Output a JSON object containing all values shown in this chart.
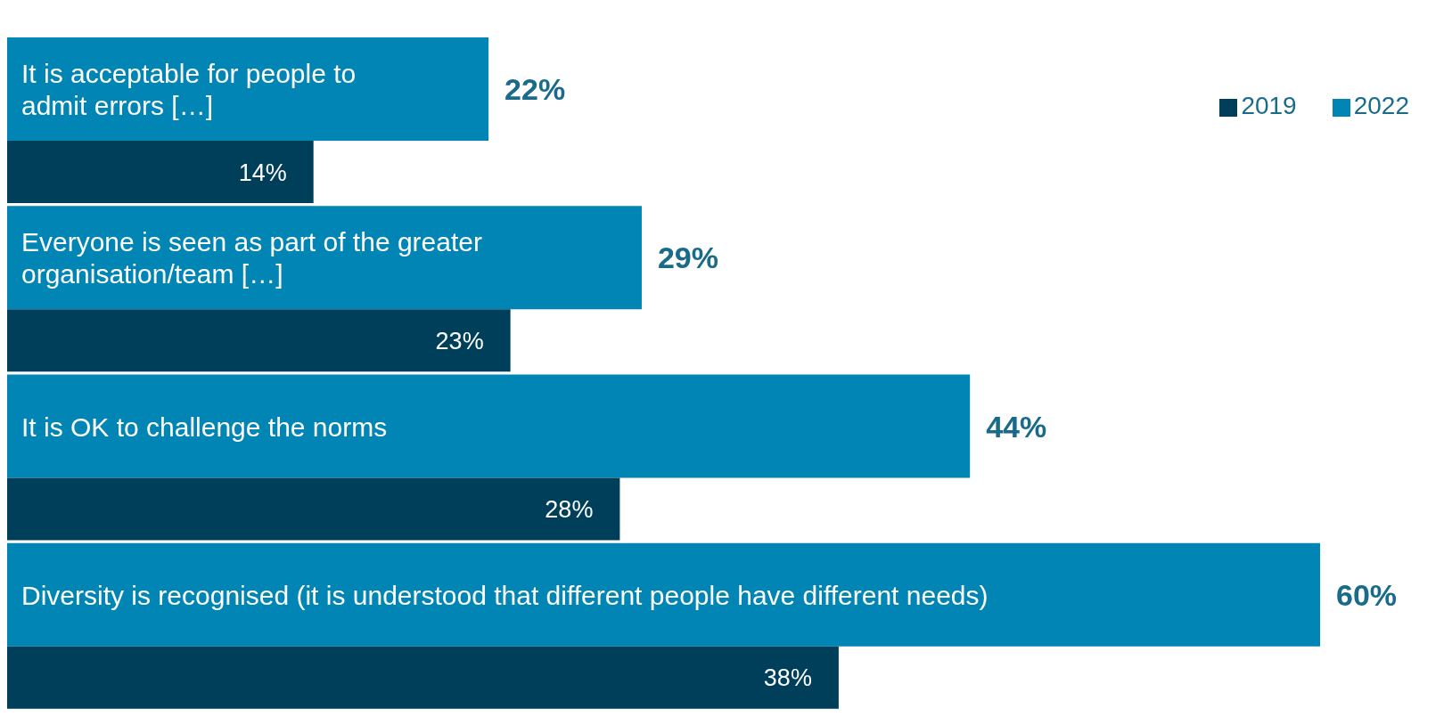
{
  "chart_data": {
    "type": "bar",
    "orientation": "horizontal",
    "categories": [
      "It is acceptable for people to admit errors […]",
      "Everyone is seen as part of the greater organisation/team […]",
      "It is OK to challenge the norms",
      "Diversity is recognised (it is understood that different people have different needs)"
    ],
    "series": [
      {
        "name": "2022",
        "color": "#0085b4",
        "values": [
          22,
          29,
          44,
          60
        ],
        "value_labels": [
          "22%",
          "29%",
          "44%",
          "60%"
        ]
      },
      {
        "name": "2019",
        "color": "#003f5a",
        "values": [
          14,
          23,
          28,
          38
        ],
        "value_labels": [
          "14%",
          "23%",
          "28%",
          "38%"
        ]
      }
    ],
    "legend": "top right",
    "tick_labels": false
  }
}
